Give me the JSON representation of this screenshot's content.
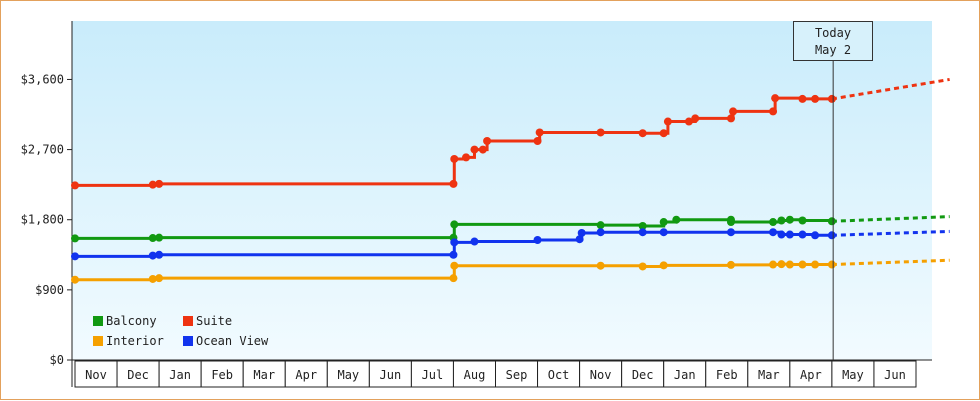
{
  "chart_data": {
    "type": "line",
    "title": "",
    "xlabel": "",
    "ylabel": "",
    "ylim": [
      0,
      4350
    ],
    "y_ticks": [
      "$0",
      "$900",
      "$1,800",
      "$2,700",
      "$3,600"
    ],
    "y_tick_values": [
      0,
      900,
      1800,
      2700,
      3600
    ],
    "x_months": [
      "Nov",
      "Dec",
      "Jan",
      "Feb",
      "Mar",
      "Apr",
      "May",
      "Jun",
      "Jul",
      "Aug",
      "Sep",
      "Oct",
      "Nov",
      "Dec",
      "Jan",
      "Feb",
      "Mar",
      "Apr",
      "May",
      "Jun"
    ],
    "x_start": "Nov (year 1)",
    "today_label": [
      "Today",
      "May 2"
    ],
    "today_month_index": 18.03,
    "legend_placement": "bottom-left",
    "grid": false,
    "series": [
      {
        "name": "Balcony",
        "color": "#119911",
        "points": [
          [
            0,
            1560
          ],
          [
            1.85,
            1565
          ],
          [
            2.0,
            1570
          ],
          [
            9.0,
            1570
          ],
          [
            9.02,
            1740
          ],
          [
            12.5,
            1730
          ],
          [
            13.5,
            1720
          ],
          [
            14.0,
            1770
          ],
          [
            14.3,
            1800
          ],
          [
            15.6,
            1800
          ],
          [
            15.6,
            1770
          ],
          [
            16.6,
            1770
          ],
          [
            16.8,
            1790
          ],
          [
            17.0,
            1800
          ],
          [
            17.3,
            1790
          ],
          [
            18.0,
            1780
          ]
        ],
        "projection": [
          [
            18.0,
            1780
          ],
          [
            20.8,
            1840
          ]
        ]
      },
      {
        "name": "Suite",
        "color": "#ee3311",
        "points": [
          [
            0,
            2240
          ],
          [
            1.85,
            2250
          ],
          [
            2.0,
            2260
          ],
          [
            9.0,
            2260
          ],
          [
            9.02,
            2580
          ],
          [
            9.3,
            2600
          ],
          [
            9.5,
            2700
          ],
          [
            9.7,
            2700
          ],
          [
            9.8,
            2810
          ],
          [
            11.0,
            2810
          ],
          [
            11.05,
            2920
          ],
          [
            12.5,
            2920
          ],
          [
            13.5,
            2910
          ],
          [
            14.0,
            2910
          ],
          [
            14.1,
            3060
          ],
          [
            14.6,
            3060
          ],
          [
            14.75,
            3100
          ],
          [
            15.6,
            3100
          ],
          [
            15.65,
            3190
          ],
          [
            16.6,
            3190
          ],
          [
            16.65,
            3360
          ],
          [
            17.3,
            3350
          ],
          [
            17.6,
            3350
          ],
          [
            18.0,
            3350
          ]
        ],
        "projection": [
          [
            18.0,
            3350
          ],
          [
            20.8,
            3600
          ]
        ]
      },
      {
        "name": "Interior",
        "color": "#f5a000",
        "points": [
          [
            0,
            1030
          ],
          [
            1.85,
            1040
          ],
          [
            2.0,
            1050
          ],
          [
            9.0,
            1050
          ],
          [
            9.02,
            1210
          ],
          [
            12.5,
            1210
          ],
          [
            13.5,
            1200
          ],
          [
            14.0,
            1215
          ],
          [
            15.6,
            1220
          ],
          [
            16.6,
            1225
          ],
          [
            16.8,
            1230
          ],
          [
            17.0,
            1225
          ],
          [
            17.3,
            1225
          ],
          [
            17.6,
            1225
          ],
          [
            18.0,
            1225
          ]
        ],
        "projection": [
          [
            18.0,
            1225
          ],
          [
            20.8,
            1280
          ]
        ]
      },
      {
        "name": "Ocean View",
        "color": "#1133ee",
        "points": [
          [
            0,
            1330
          ],
          [
            1.85,
            1340
          ],
          [
            2.0,
            1350
          ],
          [
            9.0,
            1350
          ],
          [
            9.02,
            1510
          ],
          [
            9.5,
            1520
          ],
          [
            11.0,
            1540
          ],
          [
            12.0,
            1550
          ],
          [
            12.05,
            1630
          ],
          [
            12.5,
            1640
          ],
          [
            13.5,
            1640
          ],
          [
            14.0,
            1640
          ],
          [
            15.6,
            1640
          ],
          [
            16.6,
            1640
          ],
          [
            16.8,
            1610
          ],
          [
            17.0,
            1610
          ],
          [
            17.3,
            1610
          ],
          [
            17.6,
            1600
          ],
          [
            18.0,
            1600
          ]
        ],
        "projection": [
          [
            18.0,
            1600
          ],
          [
            20.8,
            1650
          ]
        ]
      }
    ]
  }
}
